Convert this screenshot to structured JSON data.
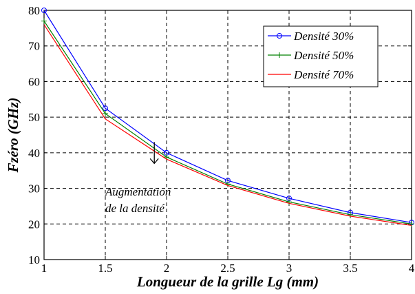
{
  "chart_data": {
    "type": "line",
    "xlabel": "Longueur de la grille Lg (mm)",
    "ylabel": "Fzéro (GHz)",
    "xlim": [
      1,
      4
    ],
    "ylim": [
      10,
      80
    ],
    "xticks": [
      1,
      1.5,
      2,
      2.5,
      3,
      3.5,
      4
    ],
    "yticks": [
      10,
      20,
      30,
      40,
      50,
      60,
      70,
      80
    ],
    "xtick_labels": [
      "1",
      "1.5",
      "2",
      "2.5",
      "3",
      "3.5",
      "4"
    ],
    "ytick_labels": [
      "10",
      "20",
      "30",
      "40",
      "50",
      "60",
      "70",
      "80"
    ],
    "grid": true,
    "legend_position": "top-right",
    "x": [
      1,
      1.5,
      2,
      2.5,
      3,
      3.5,
      4
    ],
    "series": [
      {
        "name": "Densité 30%",
        "color": "#0000ff",
        "marker": "circle",
        "values": [
          80,
          52.5,
          40,
          32.2,
          27.2,
          23.2,
          20.4
        ]
      },
      {
        "name": "Densité 50%",
        "color": "#008000",
        "marker": "plus",
        "values": [
          77,
          51,
          38.8,
          31.2,
          26.2,
          22.6,
          20
        ]
      },
      {
        "name": "Densité 70%",
        "color": "#ff0000",
        "marker": "none",
        "values": [
          76,
          49.5,
          38.2,
          30.8,
          25.8,
          22.2,
          19.6
        ]
      }
    ],
    "annotations": [
      {
        "text_lines": [
          "Augmentation",
          "de la densité"
        ],
        "arrow": "down",
        "x": 1.9,
        "y_start": 43,
        "y_end": 37
      }
    ]
  }
}
